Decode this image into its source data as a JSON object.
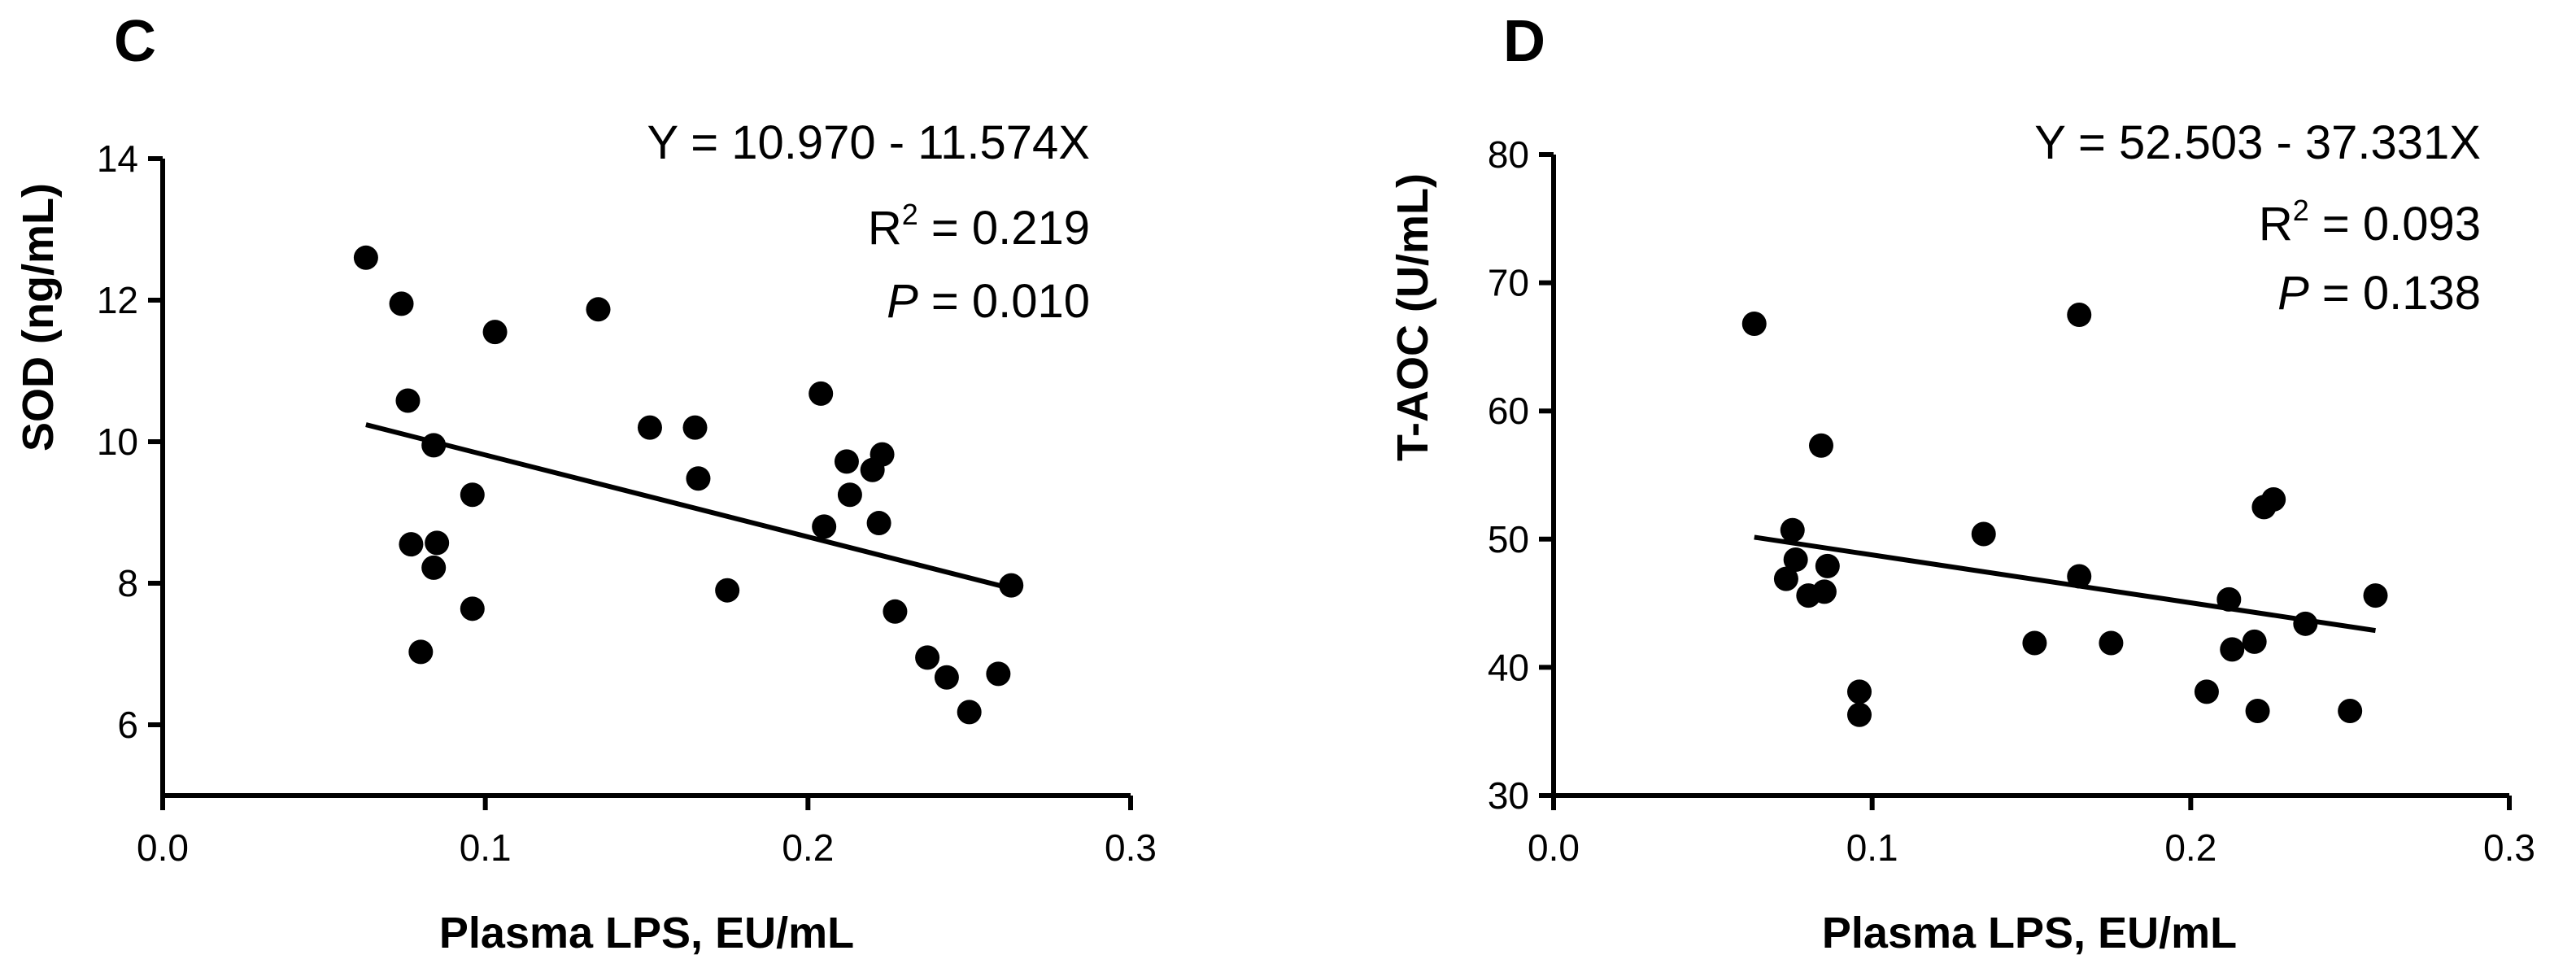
{
  "chart_data": [
    {
      "type": "scatter",
      "panel": "C",
      "title": "",
      "xlabel": "Plasma LPS, EU/mL",
      "ylabel": "SOD (ng/mL)",
      "xlim": [
        0.0,
        0.3
      ],
      "ylim": [
        5,
        14
      ],
      "xticks": [
        0.0,
        0.1,
        0.2,
        0.3
      ],
      "xtick_labels": [
        "0.0",
        "0.1",
        "0.2",
        "0.3"
      ],
      "yticks": [
        6,
        8,
        10,
        12,
        14
      ],
      "ytick_labels": [
        "6",
        "8",
        "10",
        "12",
        "14"
      ],
      "grid": false,
      "points": [
        {
          "x": 0.063,
          "y": 12.6
        },
        {
          "x": 0.074,
          "y": 11.95
        },
        {
          "x": 0.076,
          "y": 10.58
        },
        {
          "x": 0.077,
          "y": 8.55
        },
        {
          "x": 0.08,
          "y": 7.03
        },
        {
          "x": 0.084,
          "y": 9.95
        },
        {
          "x": 0.084,
          "y": 8.22
        },
        {
          "x": 0.085,
          "y": 8.57
        },
        {
          "x": 0.096,
          "y": 9.25
        },
        {
          "x": 0.096,
          "y": 7.64
        },
        {
          "x": 0.103,
          "y": 11.55
        },
        {
          "x": 0.135,
          "y": 11.87
        },
        {
          "x": 0.151,
          "y": 10.2
        },
        {
          "x": 0.165,
          "y": 10.2
        },
        {
          "x": 0.166,
          "y": 9.48
        },
        {
          "x": 0.175,
          "y": 7.9
        },
        {
          "x": 0.204,
          "y": 10.68
        },
        {
          "x": 0.205,
          "y": 8.8
        },
        {
          "x": 0.212,
          "y": 9.72
        },
        {
          "x": 0.213,
          "y": 9.25
        },
        {
          "x": 0.22,
          "y": 9.6
        },
        {
          "x": 0.222,
          "y": 8.85
        },
        {
          "x": 0.223,
          "y": 9.82
        },
        {
          "x": 0.227,
          "y": 7.6
        },
        {
          "x": 0.237,
          "y": 6.95
        },
        {
          "x": 0.243,
          "y": 6.67
        },
        {
          "x": 0.25,
          "y": 6.18
        },
        {
          "x": 0.259,
          "y": 6.72
        },
        {
          "x": 0.263,
          "y": 7.97
        }
      ],
      "regression": {
        "intercept": 10.97,
        "slope": -11.574,
        "x_range": [
          0.063,
          0.263
        ]
      },
      "annotation": {
        "equation": "Y = 10.970 - 11.574X",
        "r2_label": "R",
        "r2_sup": "2",
        "r2_value": " = 0.219",
        "p_label": "P",
        "p_value": " = 0.010"
      }
    },
    {
      "type": "scatter",
      "panel": "D",
      "title": "",
      "xlabel": "Plasma LPS, EU/mL",
      "ylabel": "T-AOC (U/mL)",
      "xlim": [
        0.0,
        0.3
      ],
      "ylim": [
        30,
        80
      ],
      "xticks": [
        0.0,
        0.1,
        0.2,
        0.3
      ],
      "xtick_labels": [
        "0.0",
        "0.1",
        "0.2",
        "0.3"
      ],
      "yticks": [
        30,
        40,
        50,
        60,
        70,
        80
      ],
      "ytick_labels": [
        "30",
        "40",
        "50",
        "60",
        "70",
        "80"
      ],
      "grid": false,
      "points": [
        {
          "x": 0.063,
          "y": 66.8
        },
        {
          "x": 0.073,
          "y": 46.9
        },
        {
          "x": 0.075,
          "y": 50.7
        },
        {
          "x": 0.076,
          "y": 48.4
        },
        {
          "x": 0.08,
          "y": 45.6
        },
        {
          "x": 0.084,
          "y": 57.3
        },
        {
          "x": 0.085,
          "y": 45.9
        },
        {
          "x": 0.086,
          "y": 47.9
        },
        {
          "x": 0.096,
          "y": 38.1
        },
        {
          "x": 0.096,
          "y": 36.3
        },
        {
          "x": 0.135,
          "y": 50.4
        },
        {
          "x": 0.151,
          "y": 41.9
        },
        {
          "x": 0.165,
          "y": 67.5
        },
        {
          "x": 0.165,
          "y": 47.1
        },
        {
          "x": 0.175,
          "y": 41.9
        },
        {
          "x": 0.205,
          "y": 38.1
        },
        {
          "x": 0.212,
          "y": 45.3
        },
        {
          "x": 0.213,
          "y": 41.4
        },
        {
          "x": 0.22,
          "y": 42.0
        },
        {
          "x": 0.221,
          "y": 36.6
        },
        {
          "x": 0.223,
          "y": 52.5
        },
        {
          "x": 0.226,
          "y": 53.1
        },
        {
          "x": 0.236,
          "y": 43.4
        },
        {
          "x": 0.25,
          "y": 36.6
        },
        {
          "x": 0.258,
          "y": 45.6
        }
      ],
      "regression": {
        "intercept": 52.503,
        "slope": -37.331,
        "x_range": [
          0.063,
          0.258
        ]
      },
      "annotation": {
        "equation": "Y = 52.503 - 37.331X",
        "r2_label": "R",
        "r2_sup": "2",
        "r2_value": " = 0.093",
        "p_label": "P",
        "p_value": " = 0.138"
      }
    }
  ]
}
